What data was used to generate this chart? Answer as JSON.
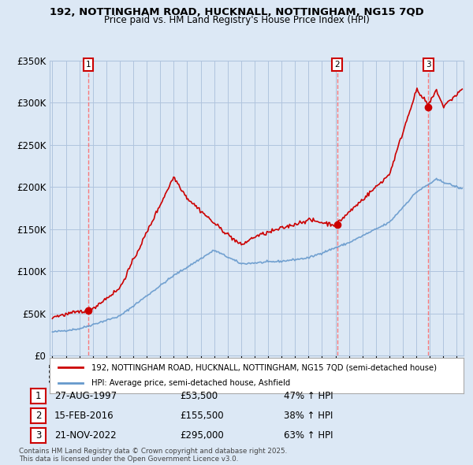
{
  "title1": "192, NOTTINGHAM ROAD, HUCKNALL, NOTTINGHAM, NG15 7QD",
  "title2": "Price paid vs. HM Land Registry's House Price Index (HPI)",
  "bg_color": "#dce8f5",
  "plot_bg_color": "#dce8f5",
  "legend_bg": "#ffffff",
  "grid_color": "#b0c4de",
  "transactions": [
    {
      "label": 1,
      "date_str": "27-AUG-1997",
      "date_x": 1997.65,
      "price": 53500
    },
    {
      "label": 2,
      "date_str": "15-FEB-2016",
      "date_x": 2016.12,
      "price": 155500
    },
    {
      "label": 3,
      "date_str": "21-NOV-2022",
      "date_x": 2022.89,
      "price": 295000
    }
  ],
  "legend_line1": "192, NOTTINGHAM ROAD, HUCKNALL, NOTTINGHAM, NG15 7QD (semi-detached house)",
  "legend_line2": "HPI: Average price, semi-detached house, Ashfield",
  "footer": "Contains HM Land Registry data © Crown copyright and database right 2025.\nThis data is licensed under the Open Government Licence v3.0.",
  "table_rows": [
    [
      1,
      "27-AUG-1997",
      "£53,500",
      "47% ↑ HPI"
    ],
    [
      2,
      "15-FEB-2016",
      "£155,500",
      "38% ↑ HPI"
    ],
    [
      3,
      "21-NOV-2022",
      "£295,000",
      "63% ↑ HPI"
    ]
  ],
  "red_color": "#cc0000",
  "blue_color": "#6699cc",
  "dashed_color": "#ff6666",
  "ylim": [
    0,
    350000
  ],
  "xlim": [
    1994.8,
    2025.5
  ]
}
